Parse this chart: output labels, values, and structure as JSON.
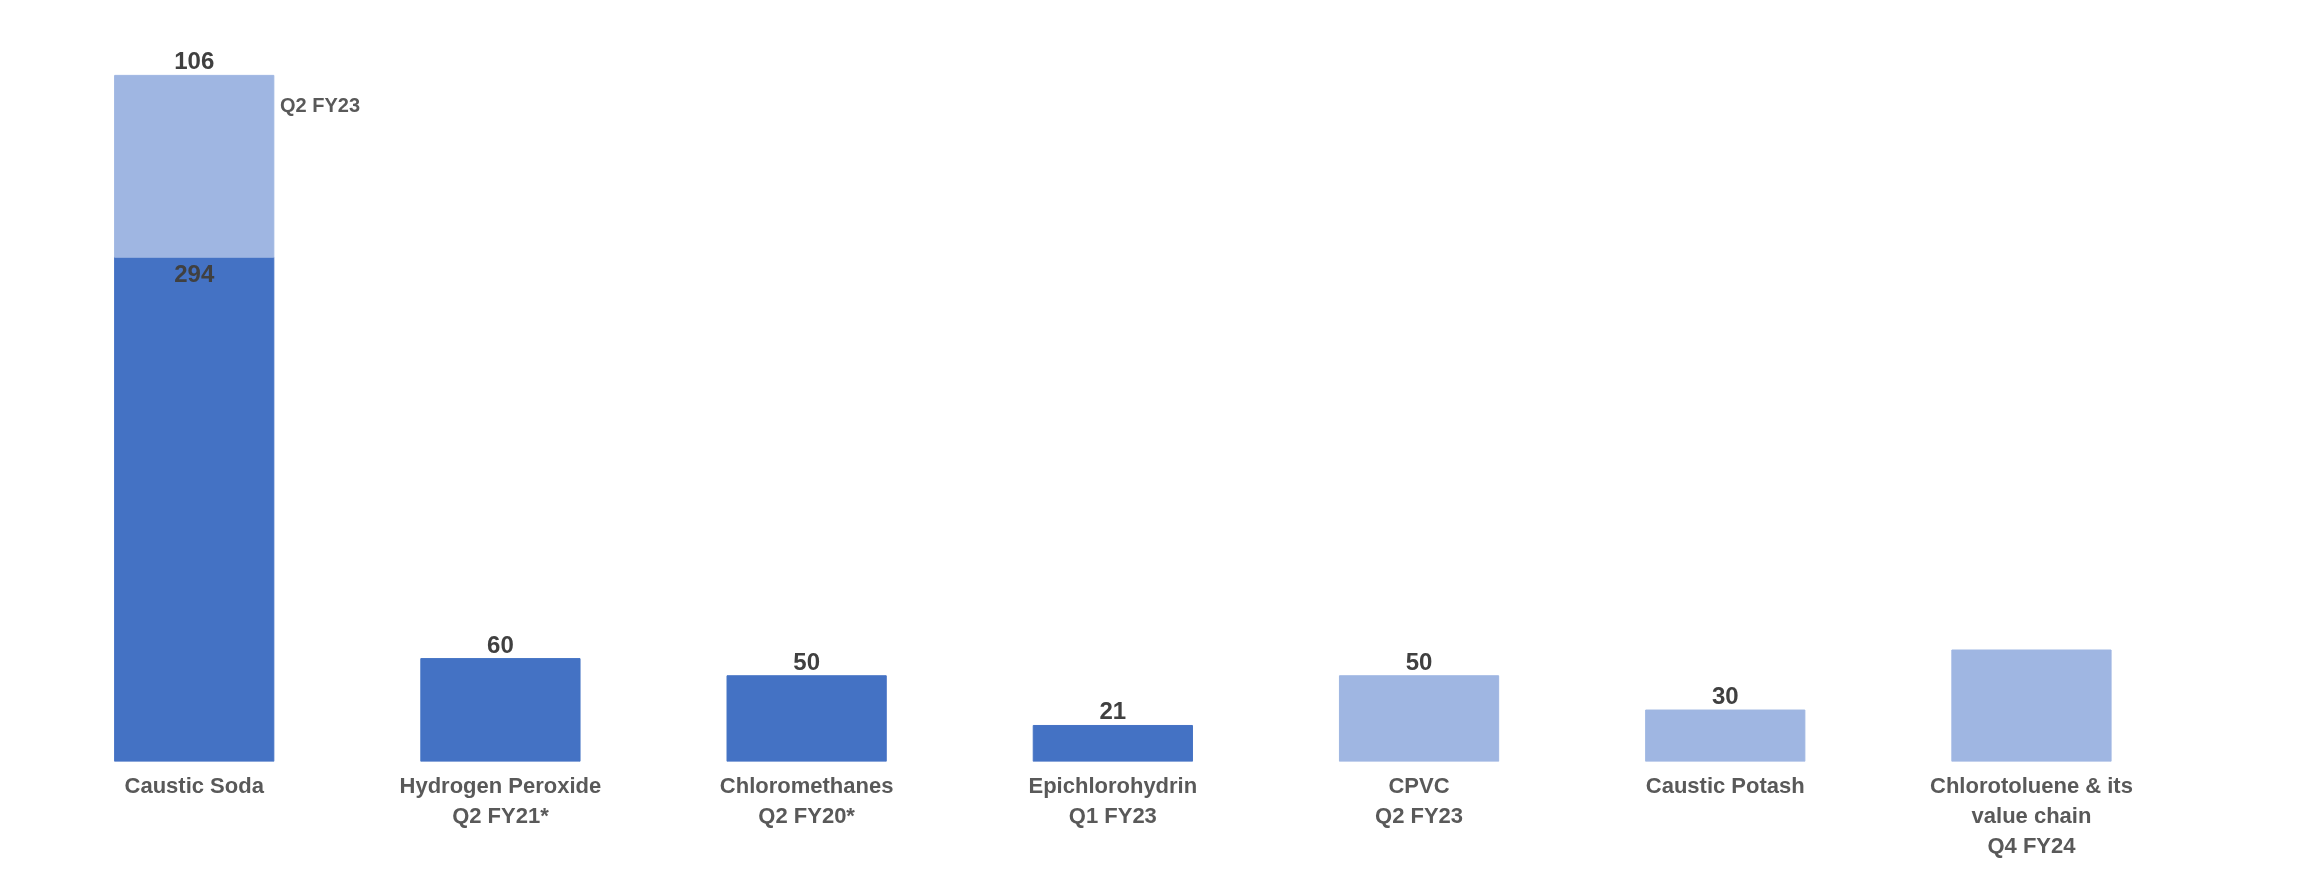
{
  "chart_data": {
    "type": "bar",
    "stacked": true,
    "categories": [
      "Caustic Soda",
      "Hydrogen Peroxide\nQ2 FY21*",
      "Chloromethanes\nQ2 FY20*",
      "Epichlorohydrin\nQ1 FY23",
      "CPVC\nQ2 FY23",
      "Caustic Potash",
      "Chlorotoluene & its\nvalue chain\nQ4 FY24"
    ],
    "series": [
      {
        "color": "#4472c4",
        "values": [
          294,
          60,
          50,
          21,
          null,
          null,
          null
        ],
        "value_labels": [
          "294",
          "60",
          "50",
          "21",
          null,
          null,
          null
        ]
      },
      {
        "color": "#9fb6e2",
        "values": [
          106,
          null,
          null,
          null,
          50,
          30,
          65
        ],
        "value_labels": [
          "106",
          null,
          null,
          null,
          "50",
          "30",
          null
        ]
      }
    ],
    "annotations": [
      "Q2 FY23"
    ],
    "grid": false
  }
}
